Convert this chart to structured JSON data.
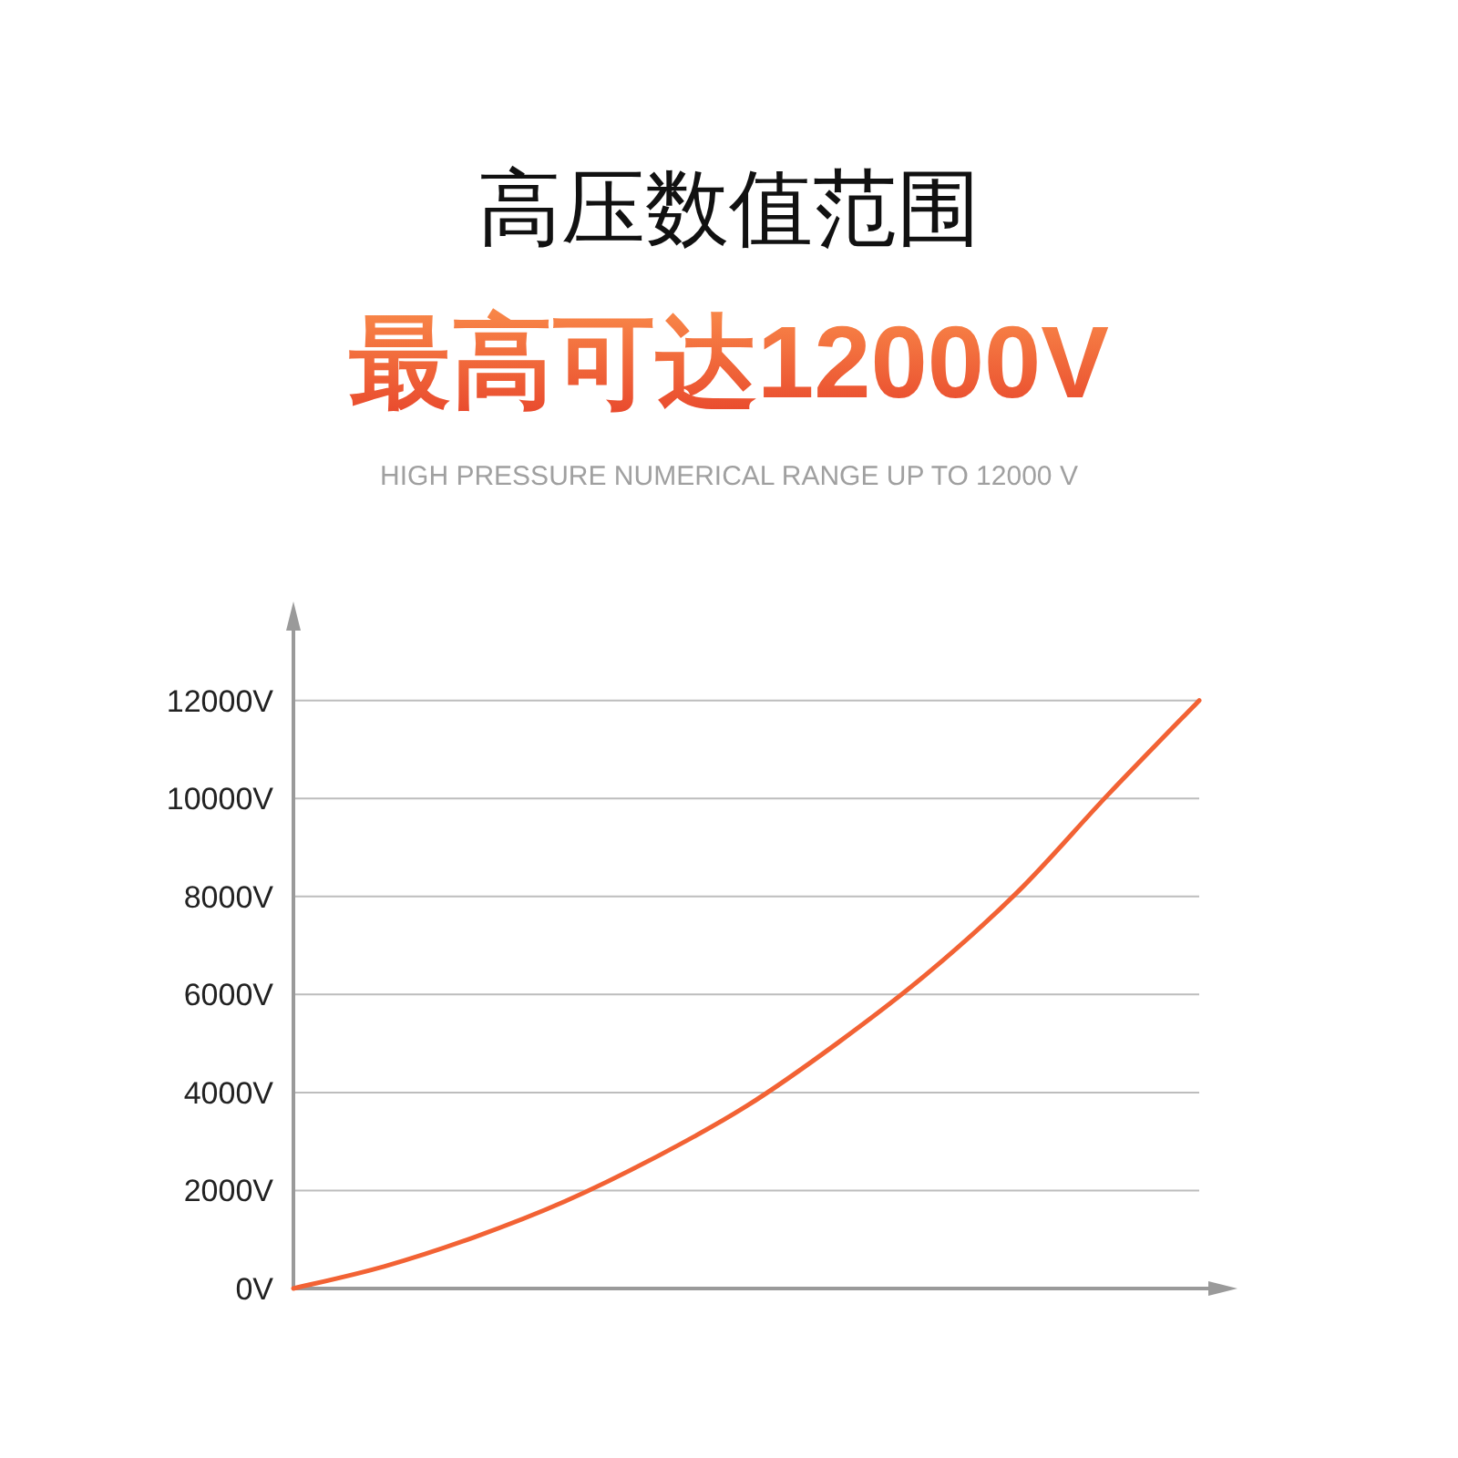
{
  "chart_data": {
    "type": "line",
    "title": "高压数值范围",
    "subtitle": "最高可达12000V",
    "annotations": [
      "HIGH PRESSURE NUMERICAL RANGE UP TO 12000 V"
    ],
    "categories": [
      null,
      null,
      null,
      null,
      null,
      null,
      null,
      null,
      null,
      null,
      null
    ],
    "series": [
      {
        "color": "#f26234",
        "values": [
          0,
          450,
          1050,
          1780,
          2680,
          3720,
          5000,
          6430,
          8100,
          10090,
          12000
        ]
      }
    ],
    "ylim": [
      0,
      13500
    ],
    "yticks": [
      {
        "value": 0,
        "label": "0V"
      },
      {
        "value": 2000,
        "label": "2000V"
      },
      {
        "value": 4000,
        "label": "4000V"
      },
      {
        "value": 6000,
        "label": "6000V"
      },
      {
        "value": 8000,
        "label": "8000V"
      },
      {
        "value": 10000,
        "label": "10000V"
      },
      {
        "value": 12000,
        "label": "12000V"
      }
    ],
    "tick_labels": "y",
    "grid": "y",
    "marker": "none",
    "line_style": "solid"
  }
}
